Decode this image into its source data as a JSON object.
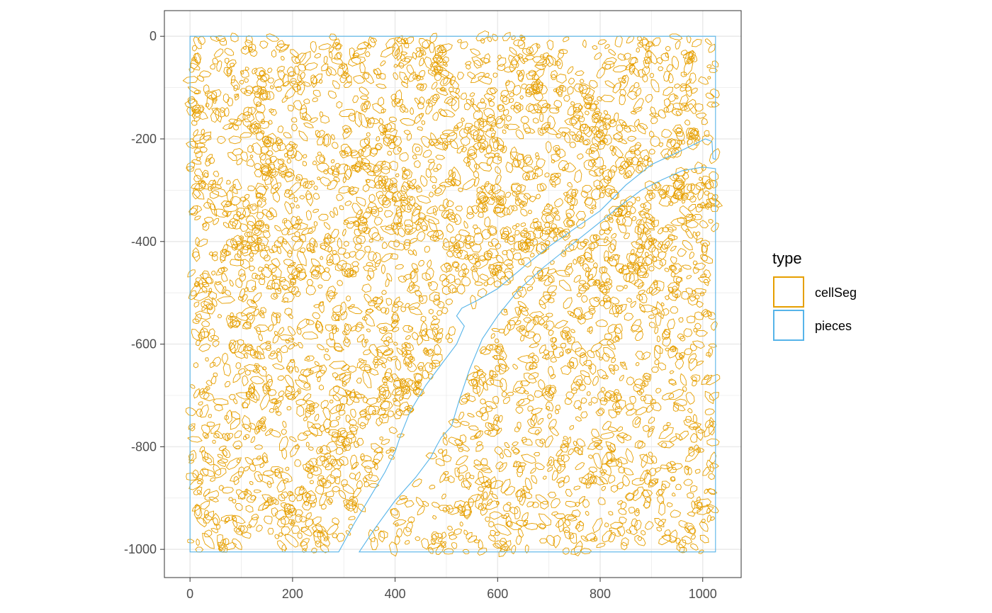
{
  "colors": {
    "cellSeg": "#E69F00",
    "pieces": "#56B4E9",
    "grid": "#ebebeb",
    "panel_border": "#333333"
  },
  "chart_data": {
    "type": "scatter",
    "geometry": "polygon outlines (spatial cell segmentation)",
    "title": "",
    "xlabel": "",
    "ylabel": "",
    "xlim": [
      -50,
      1075
    ],
    "ylim": [
      -1055,
      50
    ],
    "x_ticks": [
      0,
      200,
      400,
      600,
      800,
      1000
    ],
    "y_ticks": [
      0,
      -200,
      -400,
      -600,
      -800,
      -1000
    ],
    "x_tick_labels": [
      "0",
      "200",
      "400",
      "600",
      "800",
      "1000"
    ],
    "y_tick_labels": [
      "0",
      "-200",
      "-400",
      "-600",
      "-800",
      "-1000"
    ],
    "grid": true,
    "legend": {
      "title": "type",
      "position": "right",
      "entries": [
        "cellSeg",
        "pieces"
      ]
    },
    "series": [
      {
        "name": "pieces",
        "shape": "outline",
        "polygons": [
          [
            [
              0,
              0
            ],
            [
              1025,
              0
            ],
            [
              1025,
              -240
            ],
            [
              1020,
              -238
            ],
            [
              1018,
              -205
            ],
            [
              1005,
              -200
            ],
            [
              960,
              -222
            ],
            [
              900,
              -250
            ],
            [
              850,
              -290
            ],
            [
              800,
              -340
            ],
            [
              750,
              -375
            ],
            [
              700,
              -410
            ],
            [
              650,
              -450
            ],
            [
              600,
              -492
            ],
            [
              560,
              -515
            ],
            [
              530,
              -530
            ],
            [
              520,
              -545
            ],
            [
              535,
              -565
            ],
            [
              520,
              -600
            ],
            [
              490,
              -640
            ],
            [
              460,
              -680
            ],
            [
              430,
              -730
            ],
            [
              410,
              -780
            ],
            [
              400,
              -810
            ],
            [
              380,
              -850
            ],
            [
              350,
              -900
            ],
            [
              320,
              -950
            ],
            [
              290,
              -1005
            ],
            [
              0,
              -1005
            ]
          ],
          [
            [
              330,
              -1005
            ],
            [
              360,
              -960
            ],
            [
              400,
              -905
            ],
            [
              440,
              -860
            ],
            [
              470,
              -820
            ],
            [
              480,
              -800
            ],
            [
              490,
              -782
            ],
            [
              510,
              -760
            ],
            [
              525,
              -710
            ],
            [
              545,
              -650
            ],
            [
              570,
              -590
            ],
            [
              600,
              -545
            ],
            [
              640,
              -495
            ],
            [
              690,
              -450
            ],
            [
              740,
              -410
            ],
            [
              790,
              -370
            ],
            [
              840,
              -330
            ],
            [
              880,
              -300
            ],
            [
              920,
              -280
            ],
            [
              960,
              -262
            ],
            [
              1000,
              -255
            ],
            [
              1025,
              -258
            ],
            [
              1025,
              -1005
            ]
          ]
        ]
      },
      {
        "name": "cellSeg",
        "shape": "outline",
        "cells": "several thousand small segmented cell polygons filling both tissue pieces; dense bands along the crypt/lumen borders and the central diagonal channel",
        "approx_cell_diameter": [
          6,
          22
        ],
        "dense_bands": [
          [
            [
              120,
              -30
            ],
            [
              150,
              -200
            ],
            [
              110,
              -350
            ],
            [
              140,
              -480
            ],
            [
              250,
              -480
            ],
            [
              330,
              -420
            ],
            [
              380,
              -320
            ],
            [
              420,
              -230
            ],
            [
              380,
              -200
            ],
            [
              300,
              -230
            ],
            [
              230,
              -260
            ],
            [
              170,
              -240
            ]
          ],
          [
            [
              560,
              -200
            ],
            [
              620,
              -130
            ],
            [
              700,
              -100
            ],
            [
              780,
              -120
            ],
            [
              800,
              -210
            ],
            [
              720,
              -260
            ],
            [
              650,
              -300
            ],
            [
              580,
              -320
            ]
          ],
          [
            [
              780,
              -520
            ],
            [
              840,
              -460
            ],
            [
              920,
              -450
            ],
            [
              970,
              -520
            ],
            [
              950,
              -620
            ],
            [
              880,
              -690
            ],
            [
              800,
              -720
            ],
            [
              740,
              -680
            ],
            [
              730,
              -600
            ]
          ],
          [
            [
              480,
              -520
            ],
            [
              540,
              -420
            ],
            [
              640,
              -380
            ],
            [
              760,
              -320
            ],
            [
              860,
              -260
            ],
            [
              990,
              -190
            ]
          ],
          [
            [
              560,
              -560
            ],
            [
              660,
              -440
            ],
            [
              780,
              -370
            ],
            [
              880,
              -310
            ],
            [
              1010,
              -270
            ]
          ],
          [
            [
              180,
              -950
            ],
            [
              230,
              -870
            ],
            [
              300,
              -800
            ],
            [
              380,
              -740
            ],
            [
              460,
              -640
            ]
          ]
        ]
      }
    ]
  }
}
